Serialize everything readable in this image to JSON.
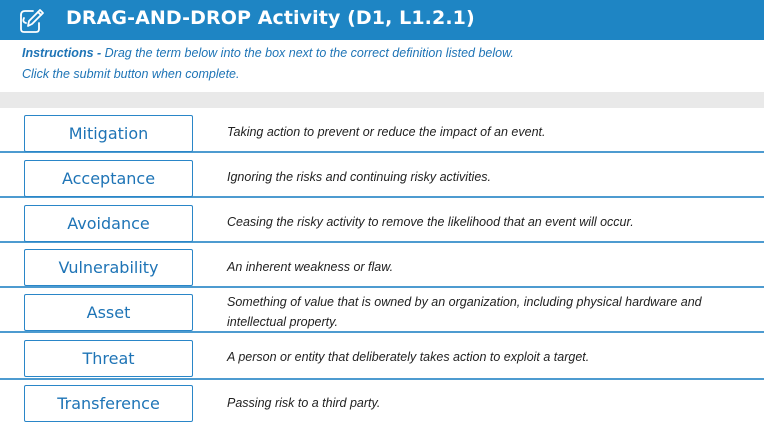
{
  "header": {
    "title": "DRAG-AND-DROP Activity (D1, L1.2.1)",
    "icon": "pencil-edit-icon",
    "color": "#1e85c4"
  },
  "instructions": {
    "label": "Instructions -",
    "line1": " Drag the term below into the box next to the correct definition listed below.",
    "line2": "Click the submit button when complete."
  },
  "items": [
    {
      "term": "Mitigation",
      "definition": "Taking action to prevent or reduce the impact of an event."
    },
    {
      "term": "Acceptance",
      "definition": "Ignoring the risks and continuing risky activities."
    },
    {
      "term": "Avoidance",
      "definition": "Ceasing the risky activity to remove the likelihood that an event will occur."
    },
    {
      "term": "Vulnerability",
      "definition": "An inherent weakness or flaw."
    },
    {
      "term": "Asset",
      "definition": "Something of value that is owned by an organization, including physical hardware and intellectual property."
    },
    {
      "term": "Threat",
      "definition": "A person or entity that deliberately takes action to exploit a target."
    },
    {
      "term": "Transference",
      "definition": "Passing risk to a third party."
    }
  ]
}
